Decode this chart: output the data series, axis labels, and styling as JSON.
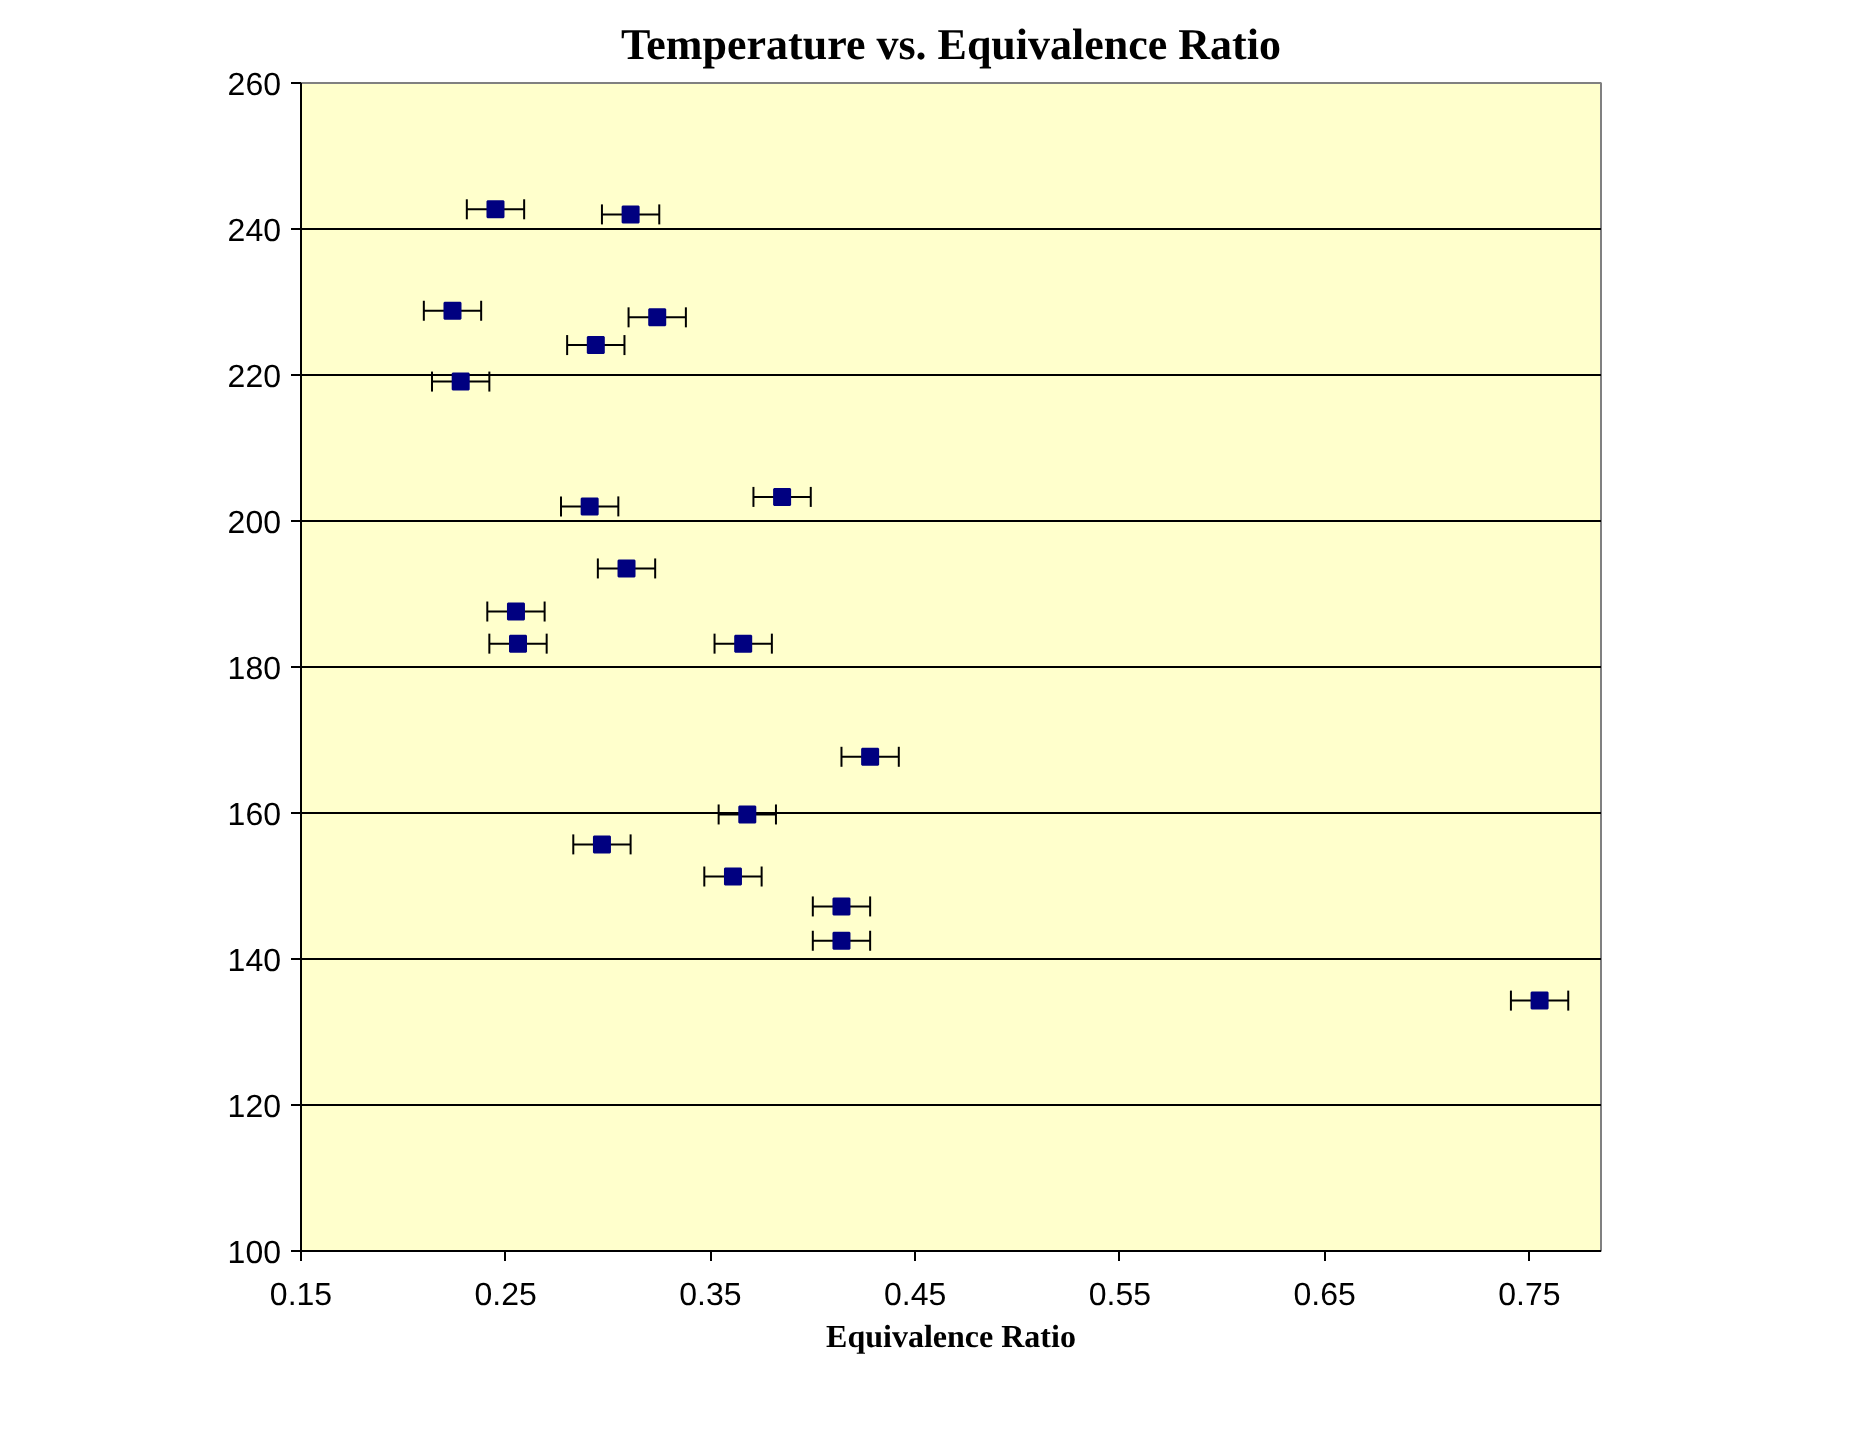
{
  "chart_data": {
    "type": "scatter",
    "title": "Temperature vs. Equivalence Ratio",
    "xlabel": "Equivalence Ratio",
    "x": [
      0.245,
      0.311,
      0.224,
      0.324,
      0.294,
      0.228,
      0.291,
      0.385,
      0.309,
      0.255,
      0.256,
      0.366,
      0.428,
      0.368,
      0.297,
      0.361,
      0.414,
      0.414,
      0.755
    ],
    "values": [
      242.7,
      242.0,
      228.8,
      227.9,
      224.1,
      219.1,
      202.0,
      203.3,
      193.5,
      187.6,
      183.2,
      183.2,
      167.7,
      159.8,
      155.7,
      151.3,
      147.2,
      142.5,
      134.3
    ],
    "xerrors": [
      0.014,
      0.014,
      0.014,
      0.014,
      0.014,
      0.014,
      0.014,
      0.014,
      0.014,
      0.014,
      0.014,
      0.014,
      0.014,
      0.014,
      0.014,
      0.014,
      0.014,
      0.014,
      0.014
    ],
    "color": "#000080",
    "marker": "square",
    "xlim": [
      0.15,
      0.785
    ],
    "ylim": [
      100,
      260
    ],
    "xticks": [
      0.15,
      0.25,
      0.35,
      0.45,
      0.55,
      0.65,
      0.75
    ],
    "yticks": [
      100,
      120,
      140,
      160,
      180,
      200,
      220,
      240,
      260
    ],
    "grid": "y"
  }
}
